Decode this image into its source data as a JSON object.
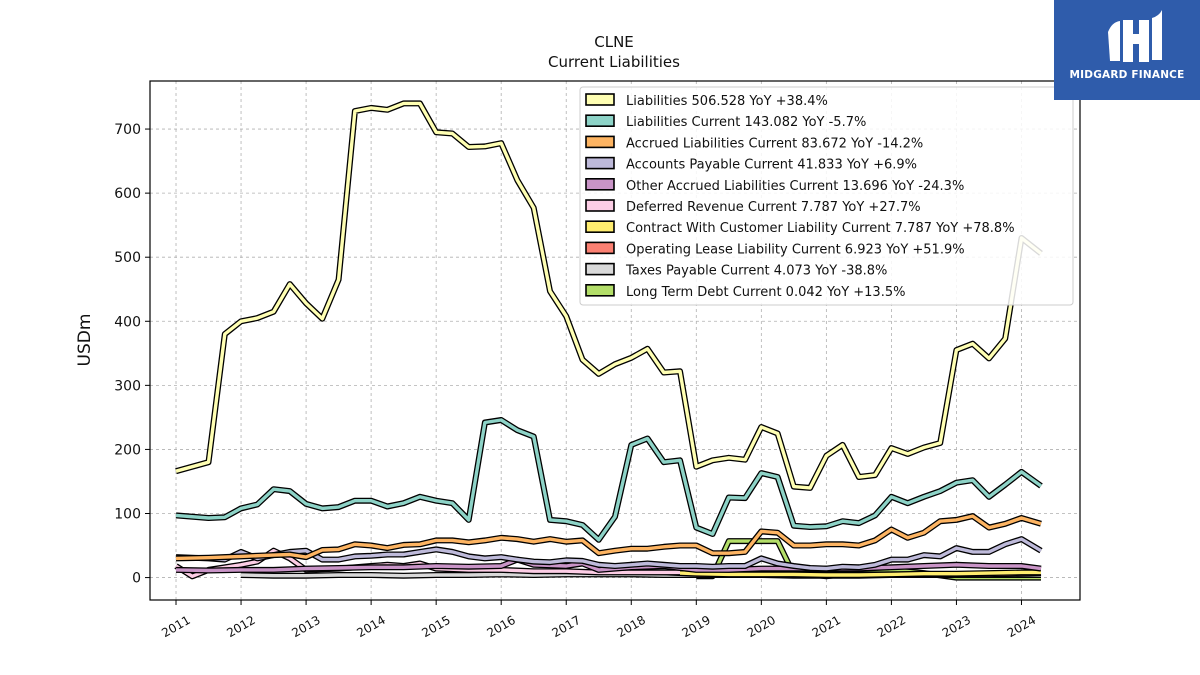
{
  "brand": {
    "name": "MIDGARD FINANCE",
    "color": "#2f5cab"
  },
  "chart_data": {
    "type": "line",
    "title": "CLNE",
    "subtitle": "Current  Liabilities",
    "ylabel": "USDm",
    "xlabel": "",
    "ylim": [
      -35,
      775
    ],
    "xlim": [
      2010.6,
      2024.9
    ],
    "yticks": [
      0,
      100,
      200,
      300,
      400,
      500,
      600,
      700
    ],
    "xticks": [
      2011,
      2012,
      2013,
      2014,
      2015,
      2016,
      2017,
      2018,
      2019,
      2020,
      2021,
      2022,
      2023,
      2024
    ],
    "grid": true,
    "legend_position": "top-right",
    "series": [
      {
        "name": "Liabilities",
        "legend": "Liabilities  506.528 YoY +38.4%",
        "color": "#ffffb3",
        "x": [
          2011.0,
          2011.5,
          2011.75,
          2012.0,
          2012.25,
          2012.5,
          2012.75,
          2013.0,
          2013.25,
          2013.5,
          2013.75,
          2014.0,
          2014.25,
          2014.5,
          2014.75,
          2015.0,
          2015.25,
          2015.5,
          2015.75,
          2016.0,
          2016.25,
          2016.5,
          2016.75,
          2017.0,
          2017.25,
          2017.5,
          2017.75,
          2018.0,
          2018.25,
          2018.5,
          2018.75,
          2019.0,
          2019.25,
          2019.5,
          2019.75,
          2020.0,
          2020.25,
          2020.5,
          2020.75,
          2021.0,
          2021.25,
          2021.5,
          2021.75,
          2022.0,
          2022.25,
          2022.5,
          2022.75,
          2023.0,
          2023.25,
          2023.5,
          2023.75,
          2024.0,
          2024.3
        ],
        "values": [
          166,
          180,
          380,
          400,
          405,
          415,
          458,
          428,
          404,
          465,
          728,
          733,
          730,
          740,
          740,
          695,
          693,
          672,
          673,
          678,
          620,
          577,
          447,
          408,
          340,
          318,
          333,
          343,
          357,
          320,
          322,
          173,
          183,
          187,
          184,
          235,
          225,
          142,
          140,
          190,
          207,
          157,
          160,
          202,
          193,
          203,
          210,
          355,
          365,
          342,
          373,
          530,
          506
        ]
      },
      {
        "name": "Liabilities Current",
        "legend": "Liabilities Current  143.082 YoY -5.7%",
        "color": "#8dd3c7",
        "x": [
          2011.0,
          2011.5,
          2011.75,
          2012.0,
          2012.25,
          2012.5,
          2012.75,
          2013.0,
          2013.25,
          2013.5,
          2013.75,
          2014.0,
          2014.25,
          2014.5,
          2014.75,
          2015.0,
          2015.25,
          2015.5,
          2015.75,
          2016.0,
          2016.25,
          2016.5,
          2016.75,
          2017.0,
          2017.25,
          2017.5,
          2017.75,
          2018.0,
          2018.25,
          2018.5,
          2018.75,
          2019.0,
          2019.25,
          2019.5,
          2019.75,
          2020.0,
          2020.25,
          2020.5,
          2020.75,
          2021.0,
          2021.25,
          2021.5,
          2021.75,
          2022.0,
          2022.25,
          2022.5,
          2022.75,
          2023.0,
          2023.25,
          2023.5,
          2023.75,
          2024.0,
          2024.3
        ],
        "values": [
          97,
          93,
          94,
          108,
          114,
          138,
          135,
          115,
          108,
          110,
          120,
          120,
          111,
          116,
          126,
          120,
          116,
          90,
          242,
          246,
          230,
          220,
          90,
          88,
          82,
          59,
          95,
          207,
          217,
          180,
          183,
          78,
          68,
          125,
          124,
          163,
          157,
          81,
          79,
          80,
          88,
          85,
          97,
          126,
          116,
          126,
          135,
          148,
          152,
          126,
          145,
          165,
          143
        ]
      },
      {
        "name": "Accrued Liabilities Current",
        "legend": "Accrued Liabilities Current  83.672 YoY -14.2%",
        "color": "#fdb462",
        "x": [
          2011.0,
          2011.5,
          2012.0,
          2012.5,
          2012.75,
          2013.0,
          2013.25,
          2013.5,
          2013.75,
          2014.0,
          2014.25,
          2014.5,
          2014.75,
          2015.0,
          2015.25,
          2015.5,
          2015.75,
          2016.0,
          2016.25,
          2016.5,
          2016.75,
          2017.0,
          2017.25,
          2017.5,
          2017.75,
          2018.0,
          2018.25,
          2018.5,
          2018.75,
          2019.0,
          2019.25,
          2019.5,
          2019.75,
          2020.0,
          2020.25,
          2020.5,
          2020.75,
          2021.0,
          2021.25,
          2021.5,
          2021.75,
          2022.0,
          2022.25,
          2022.5,
          2022.75,
          2023.0,
          2023.25,
          2023.5,
          2023.75,
          2024.0,
          2024.3
        ],
        "values": [
          30,
          31,
          33,
          35,
          36,
          32,
          43,
          44,
          52,
          50,
          46,
          51,
          52,
          58,
          58,
          55,
          58,
          62,
          60,
          56,
          60,
          56,
          58,
          38,
          42,
          45,
          45,
          48,
          50,
          50,
          38,
          38,
          40,
          72,
          70,
          50,
          50,
          52,
          52,
          50,
          58,
          75,
          62,
          70,
          88,
          90,
          96,
          78,
          84,
          93,
          84
        ]
      },
      {
        "name": "Accounts Payable Current",
        "legend": "Accounts Payable Current  41.833 YoY +6.9%",
        "color": "#bebada",
        "x": [
          2011.0,
          2011.5,
          2011.75,
          2012.0,
          2012.25,
          2012.5,
          2012.75,
          2013.0,
          2013.25,
          2013.5,
          2013.75,
          2014.0,
          2014.25,
          2014.5,
          2014.75,
          2015.0,
          2015.25,
          2015.5,
          2015.75,
          2016.0,
          2016.25,
          2016.5,
          2016.75,
          2017.0,
          2017.25,
          2017.5,
          2017.75,
          2018.0,
          2018.25,
          2018.5,
          2018.75,
          2019.0,
          2019.25,
          2019.5,
          2019.75,
          2020.0,
          2020.25,
          2020.5,
          2020.75,
          2021.0,
          2021.25,
          2021.5,
          2021.75,
          2022.0,
          2022.25,
          2022.5,
          2022.75,
          2023.0,
          2023.25,
          2023.5,
          2023.75,
          2024.0,
          2024.3
        ],
        "values": [
          32,
          30,
          28,
          40,
          30,
          35,
          40,
          42,
          28,
          28,
          33,
          34,
          36,
          36,
          40,
          44,
          40,
          33,
          30,
          32,
          28,
          25,
          24,
          27,
          26,
          20,
          18,
          20,
          22,
          20,
          18,
          18,
          17,
          18,
          18,
          30,
          22,
          18,
          15,
          14,
          17,
          16,
          20,
          28,
          28,
          35,
          33,
          46,
          40,
          40,
          52,
          60,
          42
        ]
      },
      {
        "name": "Other Accrued Liabilities Current",
        "legend": "Other Accrued Liabilities Current  13.696 YoY -24.3%",
        "color": "#c994c7",
        "x": [
          2011.0,
          2011.5,
          2012.0,
          2012.5,
          2013.0,
          2013.5,
          2014.0,
          2014.5,
          2015.0,
          2015.5,
          2016.0,
          2016.25,
          2016.5,
          2017.0,
          2017.25,
          2017.5,
          2018.0,
          2018.5,
          2019.0,
          2019.5,
          2020.0,
          2020.5,
          2021.0,
          2021.5,
          2022.0,
          2022.5,
          2023.0,
          2023.5,
          2024.0,
          2024.3
        ],
        "values": [
          12,
          11,
          12,
          12,
          14,
          15,
          16,
          16,
          18,
          17,
          18,
          28,
          20,
          18,
          22,
          12,
          16,
          18,
          12,
          12,
          14,
          14,
          14,
          14,
          16,
          18,
          20,
          18,
          18,
          14
        ]
      },
      {
        "name": "Deferred Revenue Current",
        "legend": "Deferred Revenue Current  7.787 YoY +27.7%",
        "color": "#fccde5",
        "x": [
          2011.0,
          2011.25,
          2011.5,
          2012.0,
          2012.25,
          2012.5,
          2012.75,
          2013.0,
          2013.5,
          2014.0,
          2014.25,
          2014.5,
          2014.75,
          2015.0,
          2015.5,
          2016.0,
          2016.5,
          2017.0,
          2017.5,
          2018.0,
          2018.5,
          2018.75
        ],
        "values": [
          18,
          2,
          12,
          20,
          25,
          42,
          30,
          12,
          14,
          18,
          20,
          18,
          22,
          14,
          12,
          12,
          10,
          10,
          8,
          8,
          8,
          8
        ]
      },
      {
        "name": "Contract With Customer Liability Current",
        "legend": "Contract With Customer Liability Current  7.787 YoY +78.8%",
        "color": "#ffed6f",
        "x": [
          2018.0,
          2018.5,
          2019.0,
          2019.5,
          2020.0,
          2020.5,
          2021.0,
          2021.5,
          2022.0,
          2022.5,
          2023.0,
          2023.5,
          2024.0,
          2024.3
        ],
        "values": [
          9,
          8,
          6,
          5,
          5,
          5,
          4,
          4,
          5,
          6,
          6,
          7,
          8,
          8
        ]
      },
      {
        "name": "Operating Lease Liability Current",
        "legend": "Operating Lease Liability Current  6.923 YoY +51.9%",
        "color": "#fb8072",
        "x": [
          2019.0,
          2019.5,
          2020.0,
          2020.5,
          2021.0,
          2021.5,
          2022.0,
          2022.5,
          2023.0,
          2023.5,
          2024.0,
          2024.3
        ],
        "values": [
          4,
          4,
          5,
          5,
          5,
          5,
          5,
          5,
          5,
          5,
          6,
          7
        ]
      },
      {
        "name": "Taxes Payable Current",
        "legend": "Taxes Payable Current  4.073 YoY -38.8%",
        "color": "#d9d9d9",
        "x": [
          2012.0,
          2012.5,
          2013.0,
          2013.5,
          2014.0,
          2014.5,
          2015.0,
          2015.5,
          2016.0,
          2016.5,
          2017.0,
          2017.5,
          2018.0,
          2018.5,
          2019.0,
          2019.5,
          2020.0,
          2020.5,
          2021.0,
          2021.5,
          2022.0,
          2022.5,
          2023.0,
          2023.5,
          2024.0,
          2024.3
        ],
        "values": [
          4,
          3,
          3,
          4,
          4,
          3,
          4,
          4,
          5,
          4,
          5,
          5,
          5,
          4,
          4,
          4,
          4,
          3,
          3,
          3,
          4,
          4,
          4,
          4,
          4,
          4
        ]
      },
      {
        "name": "Long Term Debt Current",
        "legend": "Long Term Debt Current  0.042 YoY +13.5%",
        "color": "#b3de69",
        "x": [
          2019.0,
          2019.25,
          2019.5,
          2019.75,
          2020.0,
          2020.25,
          2020.5,
          2020.75,
          2021.0,
          2021.5,
          2022.0,
          2022.5,
          2023.0,
          2023.5,
          2024.0,
          2024.3
        ],
        "values": [
          2,
          2,
          57,
          57,
          57,
          57,
          5,
          5,
          2,
          8,
          12,
          7,
          0,
          0,
          0,
          0
        ]
      }
    ]
  }
}
